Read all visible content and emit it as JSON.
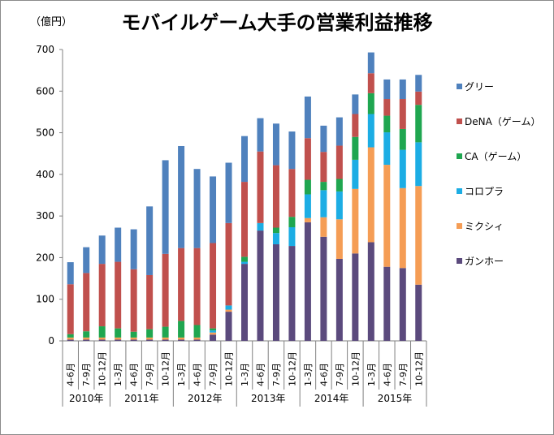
{
  "chart_data": {
    "type": "bar",
    "stacked": true,
    "title": "モバイルゲーム大手の営業利益推移",
    "unit_label": "（億円）",
    "xlabel": "",
    "ylabel": "",
    "ylim": [
      0,
      700
    ],
    "yticks": [
      0,
      100,
      200,
      300,
      400,
      500,
      600,
      700
    ],
    "grid": false,
    "legend_position": "right",
    "categories": [
      "4-6月",
      "7-9月",
      "10-12月",
      "1-3月",
      "4-6月",
      "7-9月",
      "10-12月",
      "1-3月",
      "4-6月",
      "7-9月",
      "10-12月",
      "1-3月",
      "4-6月",
      "7-9月",
      "10-12月",
      "1-3月",
      "4-6月",
      "7-9月",
      "10-12月",
      "1-3月",
      "4-6月",
      "7-9月",
      "10-12月"
    ],
    "years": [
      {
        "label": "2010年",
        "count": 3
      },
      {
        "label": "2011年",
        "count": 4
      },
      {
        "label": "2012年",
        "count": 4
      },
      {
        "label": "2013年",
        "count": 4
      },
      {
        "label": "2014年",
        "count": 4
      },
      {
        "label": "2015年",
        "count": 4
      }
    ],
    "series": [
      {
        "name": "ガンホー",
        "color": "#5B4A7D",
        "values": [
          3,
          3,
          3,
          3,
          3,
          3,
          3,
          3,
          3,
          15,
          70,
          185,
          265,
          232,
          228,
          285,
          250,
          197,
          210,
          237,
          178,
          175,
          135
        ]
      },
      {
        "name": "ミクシィ",
        "color": "#F59D55",
        "values": [
          5,
          5,
          5,
          5,
          5,
          5,
          5,
          5,
          5,
          5,
          5,
          0,
          0,
          0,
          0,
          10,
          47,
          95,
          155,
          228,
          245,
          192,
          237
        ]
      },
      {
        "name": "コロプラ",
        "color": "#1CADE4",
        "values": [
          0,
          0,
          0,
          0,
          0,
          0,
          0,
          0,
          0,
          5,
          10,
          5,
          18,
          27,
          45,
          57,
          65,
          67,
          70,
          80,
          78,
          92,
          105
        ]
      },
      {
        "name": "CA（ゲーム）",
        "color": "#1FA650",
        "values": [
          8,
          15,
          27,
          22,
          14,
          20,
          26,
          40,
          30,
          5,
          0,
          12,
          0,
          13,
          25,
          35,
          20,
          30,
          55,
          50,
          40,
          50,
          90
        ]
      },
      {
        "name": "DeNA（ゲーム）",
        "color": "#C0504D",
        "values": [
          120,
          140,
          150,
          160,
          150,
          130,
          175,
          175,
          185,
          205,
          198,
          180,
          172,
          150,
          115,
          100,
          72,
          80,
          55,
          48,
          40,
          72,
          32
        ]
      },
      {
        "name": "グリー",
        "color": "#4F81BD",
        "values": [
          53,
          62,
          68,
          82,
          96,
          165,
          225,
          245,
          190,
          160,
          145,
          110,
          80,
          100,
          90,
          100,
          63,
          68,
          47,
          50,
          47,
          47,
          40
        ]
      }
    ]
  }
}
